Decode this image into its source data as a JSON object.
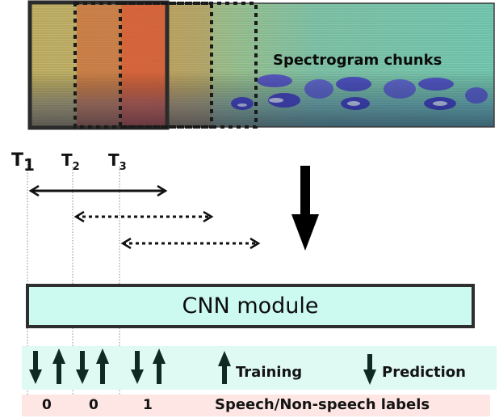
{
  "spectrogram": {
    "caption": "Spectrogram chunks"
  },
  "time_markers": [
    {
      "base": "T",
      "sub": "1"
    },
    {
      "base": "T",
      "sub": "2"
    },
    {
      "base": "T",
      "sub": "3"
    }
  ],
  "cnn": {
    "label": "CNN module"
  },
  "legend": {
    "training": "Training",
    "prediction": "Prediction"
  },
  "labels": {
    "values": [
      "0",
      "0",
      "1"
    ],
    "caption": "Speech/Non-speech labels"
  },
  "colors": {
    "cnn_fill": "#ccfaf0",
    "arrow_band": "#dff9f3",
    "label_band": "#fde6e3",
    "arrow_dark": "#0f2a22",
    "chunk_red": "#d84a2a"
  }
}
